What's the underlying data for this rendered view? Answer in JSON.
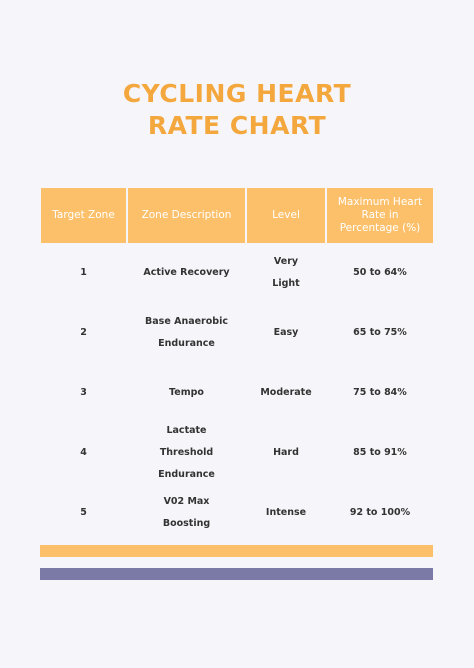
{
  "title": [
    "CYCLING HEART",
    "RATE CHART"
  ],
  "table": {
    "header": [
      "Target Zone",
      "Zone Description",
      "Level",
      "Maximum Heart Rate in Percentage (%)"
    ],
    "rows": [
      [
        "1",
        "Active Recovery",
        "Very Light",
        "50 to 64%"
      ],
      [
        "2",
        "Base Anaerobic Endurance",
        "Easy",
        "65 to 75%"
      ],
      [
        "3",
        "Tempo",
        "Moderate",
        "75 to 84%"
      ],
      [
        "4",
        "Lactate Threshold Endurance",
        "Hard",
        "85 to 91%"
      ],
      [
        "5",
        "V02 Max Boosting",
        "Intense",
        "92 to 100%"
      ]
    ]
  }
}
